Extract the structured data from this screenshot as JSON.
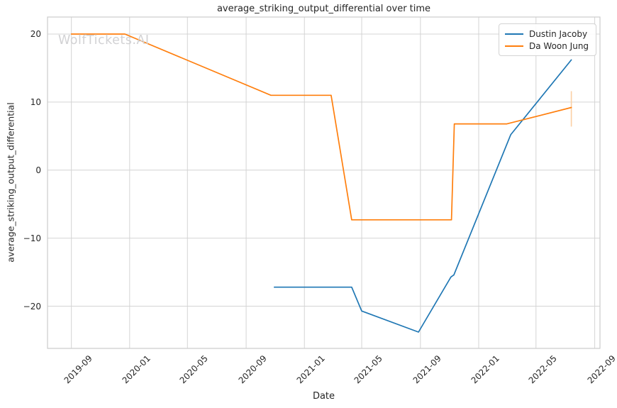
{
  "watermark": "WolfTickets.AI",
  "chart_data": {
    "type": "line",
    "title": "average_striking_output_differential over time",
    "xlabel": "Date",
    "ylabel": "average_striking_output_differential",
    "grid": true,
    "legend_position": "upper right",
    "x_ticks": [
      "2019-09",
      "2020-01",
      "2020-05",
      "2020-09",
      "2021-01",
      "2021-05",
      "2021-09",
      "2022-01",
      "2022-05",
      "2022-09"
    ],
    "y_ticks": [
      20,
      10,
      0,
      -10,
      -20
    ],
    "xlim": [
      "2019-07-13",
      "2022-09-12"
    ],
    "ylim": [
      -26.2,
      22.5
    ],
    "series": [
      {
        "name": "Dustin Jacoby",
        "color": "#1f77b4",
        "points": [
          [
            "2020-10-30",
            -17.2
          ],
          [
            "2021-04-10",
            -17.2
          ],
          [
            "2021-05-01",
            -20.7
          ],
          [
            "2021-08-28",
            -23.8
          ],
          [
            "2021-11-04",
            -15.7
          ],
          [
            "2021-11-10",
            -15.4
          ],
          [
            "2022-03-09",
            5.2
          ],
          [
            "2022-07-14",
            16.2
          ]
        ]
      },
      {
        "name": "Da Woon Jung",
        "color": "#ff7f0e",
        "points": [
          [
            "2019-09-01",
            20
          ],
          [
            "2019-12-22",
            20
          ],
          [
            "2020-10-23",
            11
          ],
          [
            "2021-02-26",
            11
          ],
          [
            "2021-04-10",
            -7.3
          ],
          [
            "2021-11-05",
            -7.3
          ],
          [
            "2021-11-11",
            6.8
          ],
          [
            "2022-03-01",
            6.8
          ],
          [
            "2022-07-14",
            9.2
          ]
        ],
        "error_bar": {
          "x": "2022-07-14",
          "low": 6.4,
          "high": 11.6,
          "color": "#fbd0a4"
        }
      }
    ]
  }
}
